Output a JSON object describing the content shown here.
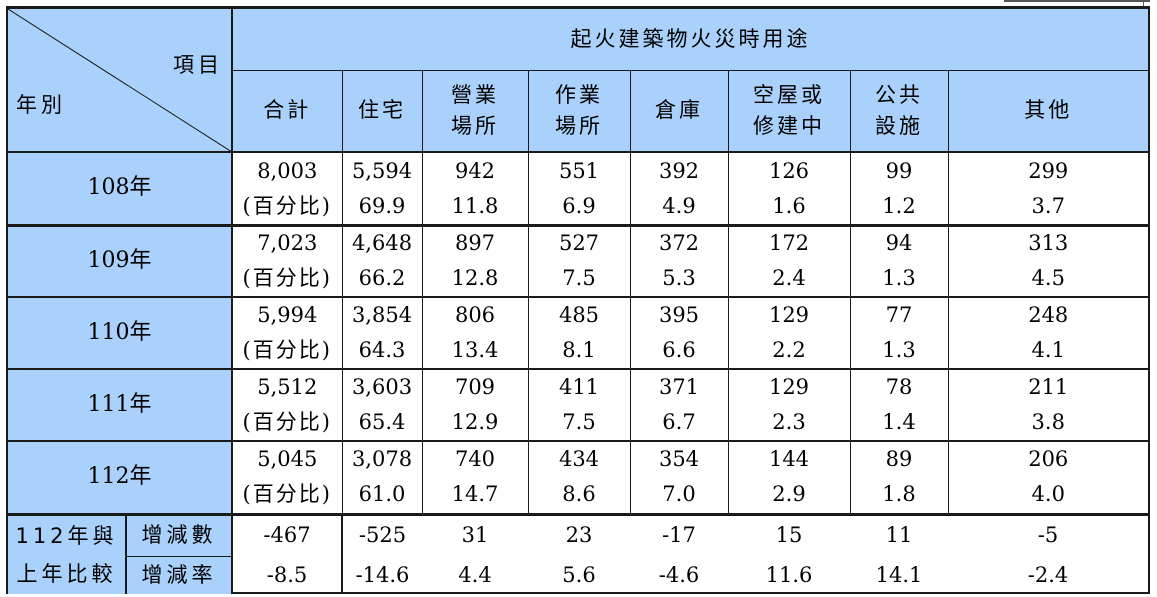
{
  "header": {
    "corner_item": "項目",
    "corner_year": "年別",
    "group_title": "起火建築物火災時用途",
    "columns": [
      {
        "l1": "合計",
        "l2": ""
      },
      {
        "l1": "住宅",
        "l2": ""
      },
      {
        "l1": "營業",
        "l2": "場所"
      },
      {
        "l1": "作業",
        "l2": "場所"
      },
      {
        "l1": "倉庫",
        "l2": ""
      },
      {
        "l1": "空屋或",
        "l2": "修建中"
      },
      {
        "l1": "公共",
        "l2": "設施"
      },
      {
        "l1": "其他",
        "l2": ""
      }
    ]
  },
  "rows": [
    {
      "year": "108年",
      "pct_label": "(百分比)",
      "counts": [
        "8,003",
        "5,594",
        "942",
        "551",
        "392",
        "126",
        "99",
        "299"
      ],
      "pcts": [
        "69.9",
        "11.8",
        "6.9",
        "4.9",
        "1.6",
        "1.2",
        "3.7"
      ]
    },
    {
      "year": "109年",
      "pct_label": "(百分比)",
      "counts": [
        "7,023",
        "4,648",
        "897",
        "527",
        "372",
        "172",
        "94",
        "313"
      ],
      "pcts": [
        "66.2",
        "12.8",
        "7.5",
        "5.3",
        "2.4",
        "1.3",
        "4.5"
      ]
    },
    {
      "year": "110年",
      "pct_label": "(百分比)",
      "counts": [
        "5,994",
        "3,854",
        "806",
        "485",
        "395",
        "129",
        "77",
        "248"
      ],
      "pcts": [
        "64.3",
        "13.4",
        "8.1",
        "6.6",
        "2.2",
        "1.3",
        "4.1"
      ]
    },
    {
      "year": "111年",
      "pct_label": "(百分比)",
      "counts": [
        "5,512",
        "3,603",
        "709",
        "411",
        "371",
        "129",
        "78",
        "211"
      ],
      "pcts": [
        "65.4",
        "12.9",
        "7.5",
        "6.7",
        "2.3",
        "1.4",
        "3.8"
      ]
    },
    {
      "year": "112年",
      "pct_label": "(百分比)",
      "counts": [
        "5,045",
        "3,078",
        "740",
        "434",
        "354",
        "144",
        "89",
        "206"
      ],
      "pcts": [
        "61.0",
        "14.7",
        "8.6",
        "7.0",
        "2.9",
        "1.8",
        "4.0"
      ]
    }
  ],
  "comparison": {
    "label_l1": "112年與",
    "label_l2": "上年比較",
    "change_label": "增減數",
    "rate_label": "增減率",
    "changes": [
      "-467",
      "-525",
      "31",
      "23",
      "-17",
      "15",
      "11",
      "-5"
    ],
    "rates": [
      "-8.5",
      "-14.6",
      "4.4",
      "5.6",
      "-4.6",
      "11.6",
      "14.1",
      "-2.4"
    ]
  },
  "colors": {
    "header_blue": "#a9d1fb",
    "border": "#1a1a1a"
  }
}
